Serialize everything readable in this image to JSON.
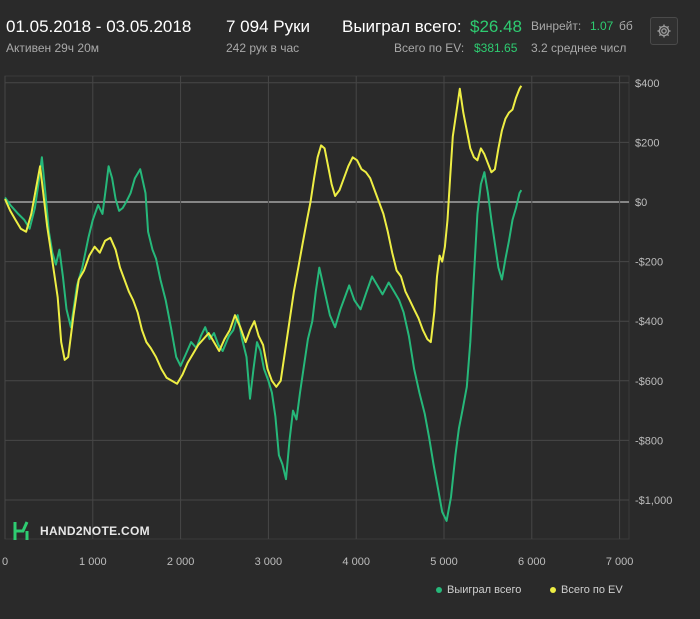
{
  "header": {
    "date_range": "01.05.2018 - 03.05.2018",
    "active_time": "Активен 29ч 20м",
    "hands": "7 094 Руки",
    "hands_per_hour": "242 рук в час",
    "won_total_label": "Выиграл всего:",
    "won_total_value": "$26.48",
    "ev_total_label": "Всего по EV:",
    "ev_total_value": "$381.65",
    "winrate_label": "Винрейт:",
    "winrate_value": "1.07",
    "winrate_unit": "бб",
    "avg_text": "3.2 среднее числ",
    "settings_icon": "gear-icon"
  },
  "brand": {
    "text": "HAND2NOTE.COM",
    "logo_icon": "hand2note-logo-icon"
  },
  "colors": {
    "background": "#2a2a2a",
    "grid": "#474747",
    "zero_line": "#bdbdbd",
    "won_series": "#26b87a",
    "ev_series": "#eeee44"
  },
  "chart_data": {
    "type": "line",
    "xlim": [
      0,
      7094
    ],
    "ylim": [
      -1150,
      420
    ],
    "x_ticks": [
      0,
      1000,
      2000,
      3000,
      4000,
      5000,
      6000,
      7000
    ],
    "x_tick_labels": [
      "0",
      "1 000",
      "2 000",
      "3 000",
      "4 000",
      "5 000",
      "6 000",
      "7 000"
    ],
    "y_ticks": [
      400,
      200,
      0,
      -200,
      -400,
      -600,
      -800,
      -1000
    ],
    "y_tick_labels": [
      "$400",
      "$200",
      "$0",
      "-$200",
      "-$400",
      "-$600",
      "-$800",
      "-$1,000"
    ],
    "grid": true,
    "legend_position": "bottom-right",
    "series": [
      {
        "name": "Выиграл всего",
        "color": "#26b87a",
        "points": [
          [
            0,
            15
          ],
          [
            60,
            -10
          ],
          [
            150,
            -40
          ],
          [
            220,
            -60
          ],
          [
            280,
            -90
          ],
          [
            340,
            -20
          ],
          [
            380,
            60
          ],
          [
            420,
            150
          ],
          [
            460,
            30
          ],
          [
            500,
            -100
          ],
          [
            540,
            -170
          ],
          [
            580,
            -210
          ],
          [
            620,
            -160
          ],
          [
            660,
            -250
          ],
          [
            700,
            -360
          ],
          [
            750,
            -420
          ],
          [
            820,
            -280
          ],
          [
            880,
            -220
          ],
          [
            950,
            -120
          ],
          [
            1000,
            -60
          ],
          [
            1060,
            -10
          ],
          [
            1110,
            -40
          ],
          [
            1150,
            50
          ],
          [
            1180,
            120
          ],
          [
            1220,
            80
          ],
          [
            1260,
            10
          ],
          [
            1300,
            -30
          ],
          [
            1340,
            -20
          ],
          [
            1380,
            0
          ],
          [
            1430,
            30
          ],
          [
            1480,
            80
          ],
          [
            1540,
            110
          ],
          [
            1600,
            30
          ],
          [
            1630,
            -100
          ],
          [
            1680,
            -160
          ],
          [
            1720,
            -190
          ],
          [
            1770,
            -260
          ],
          [
            1830,
            -330
          ],
          [
            1890,
            -420
          ],
          [
            1950,
            -520
          ],
          [
            2000,
            -550
          ],
          [
            2060,
            -510
          ],
          [
            2120,
            -470
          ],
          [
            2180,
            -490
          ],
          [
            2230,
            -450
          ],
          [
            2280,
            -420
          ],
          [
            2330,
            -460
          ],
          [
            2380,
            -440
          ],
          [
            2430,
            -480
          ],
          [
            2480,
            -500
          ],
          [
            2550,
            -450
          ],
          [
            2600,
            -430
          ],
          [
            2650,
            -380
          ],
          [
            2700,
            -460
          ],
          [
            2750,
            -520
          ],
          [
            2790,
            -660
          ],
          [
            2830,
            -560
          ],
          [
            2870,
            -470
          ],
          [
            2910,
            -500
          ],
          [
            2950,
            -560
          ],
          [
            3000,
            -600
          ],
          [
            3040,
            -640
          ],
          [
            3080,
            -720
          ],
          [
            3120,
            -850
          ],
          [
            3160,
            -880
          ],
          [
            3200,
            -930
          ],
          [
            3240,
            -800
          ],
          [
            3280,
            -700
          ],
          [
            3320,
            -730
          ],
          [
            3360,
            -640
          ],
          [
            3400,
            -560
          ],
          [
            3450,
            -460
          ],
          [
            3500,
            -400
          ],
          [
            3540,
            -300
          ],
          [
            3580,
            -220
          ],
          [
            3640,
            -300
          ],
          [
            3700,
            -380
          ],
          [
            3760,
            -420
          ],
          [
            3820,
            -360
          ],
          [
            3870,
            -320
          ],
          [
            3920,
            -280
          ],
          [
            3980,
            -330
          ],
          [
            4050,
            -360
          ],
          [
            4120,
            -300
          ],
          [
            4180,
            -250
          ],
          [
            4240,
            -280
          ],
          [
            4300,
            -310
          ],
          [
            4370,
            -270
          ],
          [
            4430,
            -300
          ],
          [
            4490,
            -330
          ],
          [
            4540,
            -370
          ],
          [
            4600,
            -450
          ],
          [
            4660,
            -560
          ],
          [
            4720,
            -640
          ],
          [
            4780,
            -710
          ],
          [
            4830,
            -790
          ],
          [
            4880,
            -880
          ],
          [
            4930,
            -960
          ],
          [
            4980,
            -1040
          ],
          [
            5030,
            -1070
          ],
          [
            5080,
            -990
          ],
          [
            5130,
            -850
          ],
          [
            5170,
            -760
          ],
          [
            5210,
            -700
          ],
          [
            5260,
            -620
          ],
          [
            5300,
            -470
          ],
          [
            5340,
            -250
          ],
          [
            5380,
            -40
          ],
          [
            5420,
            60
          ],
          [
            5460,
            100
          ],
          [
            5500,
            30
          ],
          [
            5540,
            -60
          ],
          [
            5580,
            -140
          ],
          [
            5620,
            -220
          ],
          [
            5660,
            -260
          ],
          [
            5700,
            -190
          ],
          [
            5740,
            -130
          ],
          [
            5780,
            -60
          ],
          [
            5820,
            -20
          ],
          [
            5860,
            30
          ],
          [
            5880,
            40
          ]
        ]
      },
      {
        "name": "Всего по EV",
        "color": "#eeee44",
        "points": [
          [
            0,
            10
          ],
          [
            60,
            -30
          ],
          [
            120,
            -60
          ],
          [
            180,
            -90
          ],
          [
            240,
            -100
          ],
          [
            300,
            -40
          ],
          [
            350,
            40
          ],
          [
            400,
            120
          ],
          [
            440,
            20
          ],
          [
            480,
            -80
          ],
          [
            520,
            -160
          ],
          [
            560,
            -240
          ],
          [
            600,
            -320
          ],
          [
            640,
            -470
          ],
          [
            680,
            -530
          ],
          [
            720,
            -520
          ],
          [
            780,
            -380
          ],
          [
            840,
            -260
          ],
          [
            900,
            -230
          ],
          [
            960,
            -180
          ],
          [
            1020,
            -150
          ],
          [
            1080,
            -170
          ],
          [
            1140,
            -130
          ],
          [
            1200,
            -120
          ],
          [
            1260,
            -160
          ],
          [
            1310,
            -220
          ],
          [
            1360,
            -260
          ],
          [
            1410,
            -300
          ],
          [
            1460,
            -330
          ],
          [
            1510,
            -370
          ],
          [
            1560,
            -430
          ],
          [
            1610,
            -470
          ],
          [
            1660,
            -490
          ],
          [
            1720,
            -520
          ],
          [
            1780,
            -560
          ],
          [
            1840,
            -590
          ],
          [
            1900,
            -600
          ],
          [
            1960,
            -610
          ],
          [
            2020,
            -580
          ],
          [
            2080,
            -540
          ],
          [
            2140,
            -510
          ],
          [
            2200,
            -480
          ],
          [
            2260,
            -460
          ],
          [
            2320,
            -440
          ],
          [
            2380,
            -470
          ],
          [
            2440,
            -500
          ],
          [
            2500,
            -460
          ],
          [
            2560,
            -430
          ],
          [
            2620,
            -380
          ],
          [
            2680,
            -420
          ],
          [
            2740,
            -470
          ],
          [
            2790,
            -430
          ],
          [
            2840,
            -400
          ],
          [
            2890,
            -450
          ],
          [
            2940,
            -480
          ],
          [
            2990,
            -560
          ],
          [
            3040,
            -600
          ],
          [
            3090,
            -620
          ],
          [
            3140,
            -600
          ],
          [
            3190,
            -500
          ],
          [
            3240,
            -400
          ],
          [
            3290,
            -300
          ],
          [
            3340,
            -220
          ],
          [
            3390,
            -140
          ],
          [
            3440,
            -60
          ],
          [
            3480,
            0
          ],
          [
            3520,
            80
          ],
          [
            3560,
            150
          ],
          [
            3600,
            190
          ],
          [
            3640,
            180
          ],
          [
            3680,
            120
          ],
          [
            3720,
            60
          ],
          [
            3760,
            20
          ],
          [
            3810,
            40
          ],
          [
            3860,
            80
          ],
          [
            3910,
            120
          ],
          [
            3960,
            150
          ],
          [
            4010,
            140
          ],
          [
            4060,
            110
          ],
          [
            4110,
            100
          ],
          [
            4160,
            80
          ],
          [
            4210,
            40
          ],
          [
            4260,
            0
          ],
          [
            4310,
            -40
          ],
          [
            4360,
            -100
          ],
          [
            4410,
            -170
          ],
          [
            4460,
            -230
          ],
          [
            4510,
            -250
          ],
          [
            4560,
            -300
          ],
          [
            4610,
            -330
          ],
          [
            4660,
            -360
          ],
          [
            4710,
            -390
          ],
          [
            4760,
            -430
          ],
          [
            4810,
            -460
          ],
          [
            4850,
            -470
          ],
          [
            4890,
            -370
          ],
          [
            4920,
            -250
          ],
          [
            4950,
            -180
          ],
          [
            4980,
            -200
          ],
          [
            5010,
            -150
          ],
          [
            5040,
            -60
          ],
          [
            5070,
            80
          ],
          [
            5100,
            220
          ],
          [
            5140,
            300
          ],
          [
            5180,
            380
          ],
          [
            5220,
            300
          ],
          [
            5260,
            240
          ],
          [
            5300,
            180
          ],
          [
            5340,
            150
          ],
          [
            5380,
            140
          ],
          [
            5420,
            180
          ],
          [
            5460,
            160
          ],
          [
            5500,
            130
          ],
          [
            5540,
            100
          ],
          [
            5580,
            110
          ],
          [
            5620,
            180
          ],
          [
            5660,
            240
          ],
          [
            5700,
            280
          ],
          [
            5740,
            300
          ],
          [
            5780,
            310
          ],
          [
            5820,
            350
          ],
          [
            5860,
            380
          ],
          [
            5880,
            390
          ]
        ]
      }
    ]
  }
}
